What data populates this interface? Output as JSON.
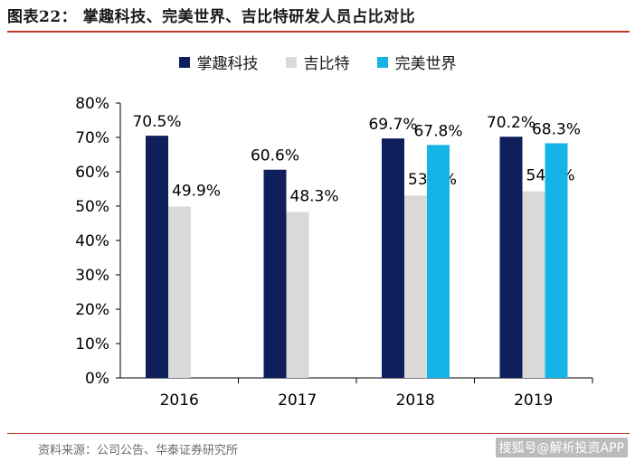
{
  "figure_title": "图表22：  掌趣科技、完美世界、吉比特研发人员占比对比",
  "source_note": "资料来源：公司公告、华泰证券研究所",
  "watermark": "搜狐号@解析投资APP",
  "colors": {
    "zhangqu": "#0f1f5c",
    "jibite": "#d9d9d9",
    "wanmei": "#16b4e6",
    "rule": "#c0392b"
  },
  "chart_data": {
    "type": "bar",
    "categories": [
      "2016",
      "2017",
      "2018",
      "2019"
    ],
    "series": [
      {
        "name": "掌趣科技",
        "values": [
          70.5,
          60.6,
          69.7,
          70.2
        ],
        "labels": [
          "70.5%",
          "60.6%",
          "69.7%",
          "70.2%"
        ],
        "color": "#0f1f5c"
      },
      {
        "name": "吉比特",
        "values": [
          49.9,
          48.3,
          53.1,
          54.3
        ],
        "labels": [
          "49.9%",
          "48.3%",
          "53.1%",
          "54.3%"
        ],
        "color": "#d9d9d9"
      },
      {
        "name": "完美世界",
        "values": [
          null,
          null,
          67.8,
          68.3
        ],
        "labels": [
          "",
          "",
          "67.8%",
          "68.3%"
        ],
        "color": "#16b4e6"
      }
    ],
    "ylim": [
      0,
      80
    ],
    "yticks": [
      0,
      10,
      20,
      30,
      40,
      50,
      60,
      70,
      80
    ],
    "ytick_labels": [
      "0%",
      "10%",
      "20%",
      "30%",
      "40%",
      "50%",
      "60%",
      "70%",
      "80%"
    ],
    "grid": false,
    "legend_position": "top-center"
  }
}
